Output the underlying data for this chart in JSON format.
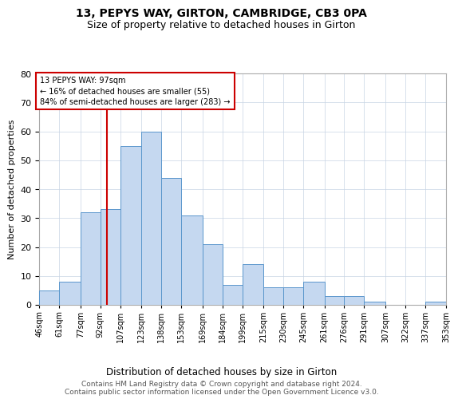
{
  "title1": "13, PEPYS WAY, GIRTON, CAMBRIDGE, CB3 0PA",
  "title2": "Size of property relative to detached houses in Girton",
  "xlabel": "Distribution of detached houses by size in Girton",
  "ylabel": "Number of detached properties",
  "footnote1": "Contains HM Land Registry data © Crown copyright and database right 2024.",
  "footnote2": "Contains public sector information licensed under the Open Government Licence v3.0.",
  "bin_labels": [
    "46sqm",
    "61sqm",
    "77sqm",
    "92sqm",
    "107sqm",
    "123sqm",
    "138sqm",
    "153sqm",
    "169sqm",
    "184sqm",
    "199sqm",
    "215sqm",
    "230sqm",
    "245sqm",
    "261sqm",
    "276sqm",
    "291sqm",
    "307sqm",
    "322sqm",
    "337sqm",
    "353sqm"
  ],
  "bar_values": [
    5,
    8,
    32,
    33,
    55,
    60,
    44,
    31,
    21,
    7,
    14,
    6,
    6,
    8,
    3,
    3,
    1,
    0,
    0,
    1
  ],
  "bar_color": "#c5d8f0",
  "bar_edge_color": "#5a96cc",
  "vline_color": "#cc0000",
  "annotation_title": "13 PEPYS WAY: 97sqm",
  "annotation_line1": "← 16% of detached houses are smaller (55)",
  "annotation_line2": "84% of semi-detached houses are larger (283) →",
  "annotation_box_color": "#cc0000",
  "ylim": [
    0,
    80
  ],
  "yticks": [
    0,
    10,
    20,
    30,
    40,
    50,
    60,
    70,
    80
  ],
  "bin_edges": [
    46,
    61,
    77,
    92,
    107,
    123,
    138,
    153,
    169,
    184,
    199,
    215,
    230,
    245,
    261,
    276,
    291,
    307,
    322,
    337,
    353
  ],
  "property_sqm": 97,
  "grid_color": "#c8d4e4"
}
